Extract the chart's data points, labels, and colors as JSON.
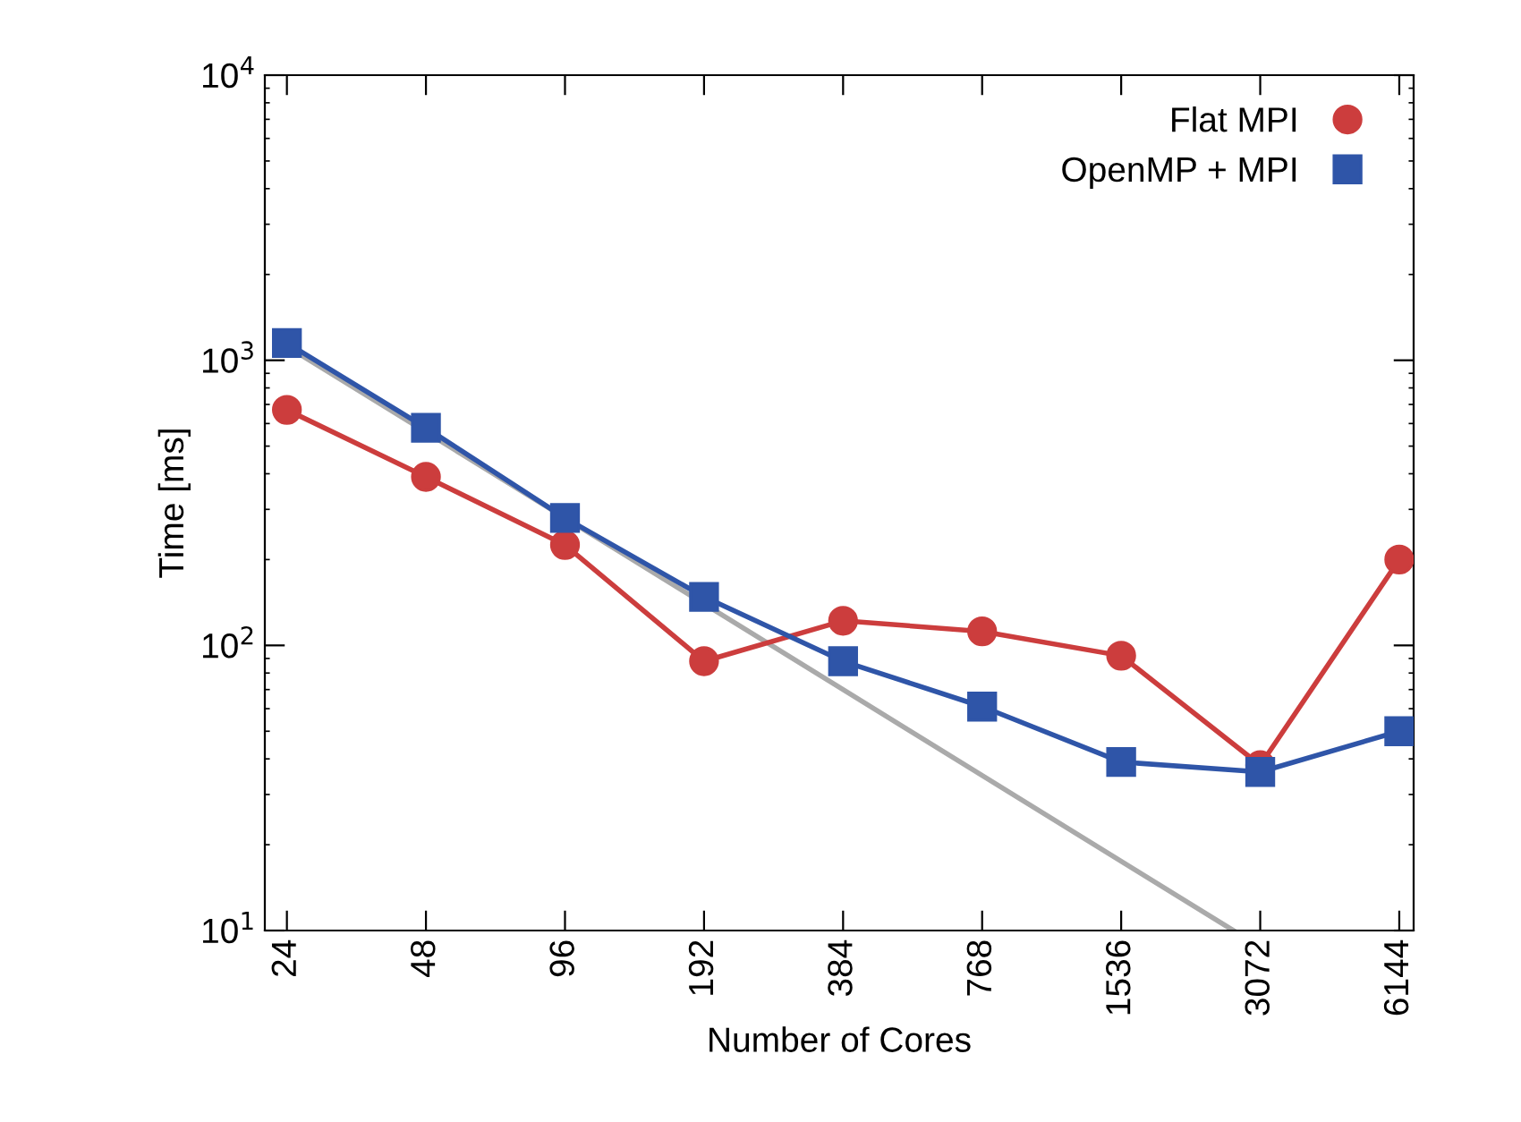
{
  "chart_data": {
    "type": "line",
    "xlabel": "Number of Cores",
    "ylabel": "Time [ms]",
    "log": "xy",
    "x": [
      24,
      48,
      96,
      192,
      384,
      768,
      1536,
      3072,
      6144
    ],
    "xlim": [
      21.5,
      6600
    ],
    "xticks": [
      24,
      48,
      96,
      192,
      384,
      768,
      1536,
      3072,
      6144
    ],
    "ylim": [
      10,
      10000
    ],
    "yticks": [
      {
        "value": 10,
        "label": "10$^{1}$"
      },
      {
        "value": 100,
        "label": "10$^{2}$"
      },
      {
        "value": 1000,
        "label": "10$^{3}$"
      },
      {
        "value": 10000,
        "label": "10$^{4}$"
      }
    ],
    "grid": false,
    "legend": "top right",
    "series": [
      {
        "name": "Flat MPI",
        "color": "#cc3d3d",
        "marker": "circle",
        "values": [
          670,
          390,
          225,
          88,
          122,
          112,
          92,
          38,
          200
        ]
      },
      {
        "name": "OpenMP + MPI",
        "color": "#2f55a8",
        "marker": "square",
        "values": [
          1150,
          580,
          280,
          148,
          88,
          61,
          39,
          36,
          50
        ]
      },
      {
        "color": "#aaaaaa",
        "marker": "none",
        "x": [
          24,
          2688
        ],
        "values": [
          1120,
          10
        ]
      }
    ]
  }
}
